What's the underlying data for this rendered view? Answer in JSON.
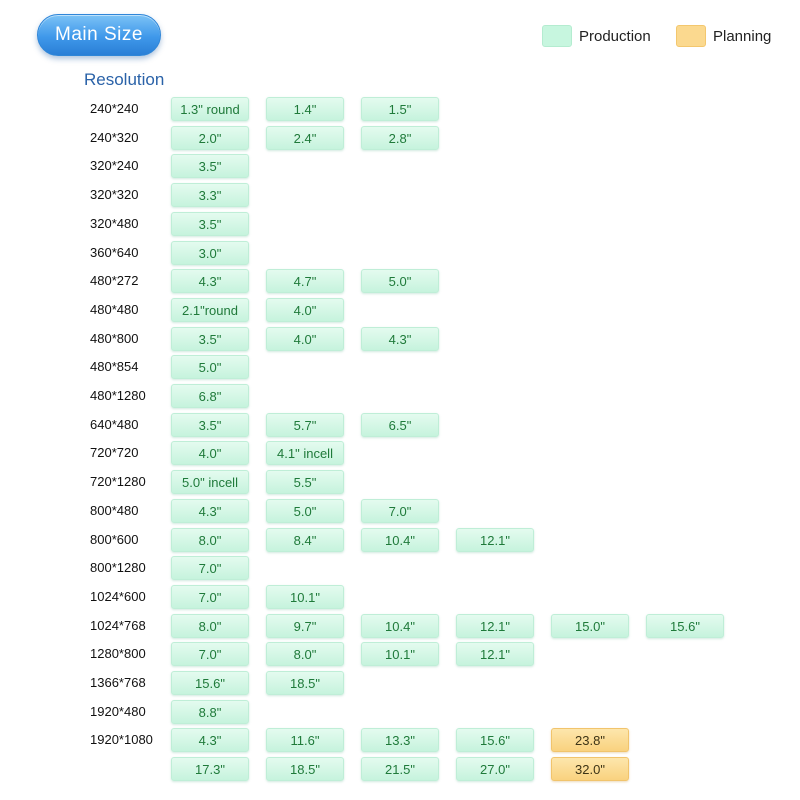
{
  "header": {
    "main_size_label": "Main Size",
    "legend": [
      {
        "label": "Production",
        "color": "#c7f6df"
      },
      {
        "label": "Planning",
        "color": "#fbd98f"
      }
    ],
    "resolution_label": "Resolution"
  },
  "rows": [
    {
      "resolution": "240*240",
      "sizes": [
        {
          "label": "1.3\" round",
          "status": "production"
        },
        {
          "label": "1.4\"",
          "status": "production"
        },
        {
          "label": "1.5\"",
          "status": "production"
        }
      ]
    },
    {
      "resolution": "240*320",
      "sizes": [
        {
          "label": "2.0\"",
          "status": "production"
        },
        {
          "label": "2.4\"",
          "status": "production"
        },
        {
          "label": "2.8\"",
          "status": "production"
        }
      ]
    },
    {
      "resolution": "320*240",
      "sizes": [
        {
          "label": "3.5\"",
          "status": "production"
        }
      ]
    },
    {
      "resolution": "320*320",
      "sizes": [
        {
          "label": "3.3\"",
          "status": "production"
        }
      ]
    },
    {
      "resolution": "320*480",
      "sizes": [
        {
          "label": "3.5\"",
          "status": "production"
        }
      ]
    },
    {
      "resolution": "360*640",
      "sizes": [
        {
          "label": "3.0\"",
          "status": "production"
        }
      ]
    },
    {
      "resolution": "480*272",
      "sizes": [
        {
          "label": "4.3\"",
          "status": "production"
        },
        {
          "label": "4.7\"",
          "status": "production"
        },
        {
          "label": "5.0\"",
          "status": "production"
        }
      ]
    },
    {
      "resolution": "480*480",
      "sizes": [
        {
          "label": "2.1\"round",
          "status": "production"
        },
        {
          "label": "4.0\"",
          "status": "production"
        }
      ]
    },
    {
      "resolution": "480*800",
      "sizes": [
        {
          "label": "3.5\"",
          "status": "production"
        },
        {
          "label": "4.0\"",
          "status": "production"
        },
        {
          "label": "4.3\"",
          "status": "production"
        }
      ]
    },
    {
      "resolution": "480*854",
      "sizes": [
        {
          "label": "5.0\"",
          "status": "production"
        }
      ]
    },
    {
      "resolution": "480*1280",
      "sizes": [
        {
          "label": "6.8\"",
          "status": "production"
        }
      ]
    },
    {
      "resolution": "640*480",
      "sizes": [
        {
          "label": "3.5\"",
          "status": "production"
        },
        {
          "label": "5.7\"",
          "status": "production"
        },
        {
          "label": "6.5\"",
          "status": "production"
        }
      ]
    },
    {
      "resolution": "720*720",
      "sizes": [
        {
          "label": "4.0\"",
          "status": "production"
        },
        {
          "label": "4.1\"  incell",
          "status": "production"
        }
      ]
    },
    {
      "resolution": "720*1280",
      "sizes": [
        {
          "label": "5.0\"  incell",
          "status": "production"
        },
        {
          "label": "5.5\"",
          "status": "production"
        }
      ]
    },
    {
      "resolution": "800*480",
      "sizes": [
        {
          "label": "4.3\"",
          "status": "production"
        },
        {
          "label": "5.0\"",
          "status": "production"
        },
        {
          "label": "7.0\"",
          "status": "production"
        }
      ]
    },
    {
      "resolution": "800*600",
      "sizes": [
        {
          "label": "8.0\"",
          "status": "production"
        },
        {
          "label": "8.4\"",
          "status": "production"
        },
        {
          "label": "10.4\"",
          "status": "production"
        },
        {
          "label": "12.1\"",
          "status": "production"
        }
      ]
    },
    {
      "resolution": "800*1280",
      "sizes": [
        {
          "label": "7.0\"",
          "status": "production"
        }
      ]
    },
    {
      "resolution": "1024*600",
      "sizes": [
        {
          "label": "7.0\"",
          "status": "production"
        },
        {
          "label": "10.1\"",
          "status": "production"
        }
      ]
    },
    {
      "resolution": "1024*768",
      "sizes": [
        {
          "label": "8.0\"",
          "status": "production"
        },
        {
          "label": "9.7\"",
          "status": "production"
        },
        {
          "label": "10.4\"",
          "status": "production"
        },
        {
          "label": "12.1\"",
          "status": "production"
        },
        {
          "label": "15.0\"",
          "status": "production"
        },
        {
          "label": "15.6\"",
          "status": "production"
        }
      ]
    },
    {
      "resolution": "1280*800",
      "sizes": [
        {
          "label": "7.0\"",
          "status": "production"
        },
        {
          "label": "8.0\"",
          "status": "production"
        },
        {
          "label": "10.1\"",
          "status": "production"
        },
        {
          "label": "12.1\"",
          "status": "production"
        }
      ]
    },
    {
      "resolution": "1366*768",
      "sizes": [
        {
          "label": "15.6\"",
          "status": "production"
        },
        {
          "label": "18.5\"",
          "status": "production"
        }
      ]
    },
    {
      "resolution": "1920*480",
      "sizes": [
        {
          "label": "8.8\"",
          "status": "production"
        }
      ]
    },
    {
      "resolution": "1920*1080",
      "sizes": [
        {
          "label": "4.3\"",
          "status": "production"
        },
        {
          "label": "11.6\"",
          "status": "production"
        },
        {
          "label": "13.3\"",
          "status": "production"
        },
        {
          "label": "15.6\"",
          "status": "production"
        },
        {
          "label": "23.8\"",
          "status": "planning"
        }
      ]
    },
    {
      "resolution": "",
      "sizes": [
        {
          "label": "17.3\"",
          "status": "production"
        },
        {
          "label": "18.5\"",
          "status": "production"
        },
        {
          "label": "21.5\"",
          "status": "production"
        },
        {
          "label": "27.0\"",
          "status": "production"
        },
        {
          "label": "32.0\"",
          "status": "planning"
        }
      ]
    }
  ]
}
